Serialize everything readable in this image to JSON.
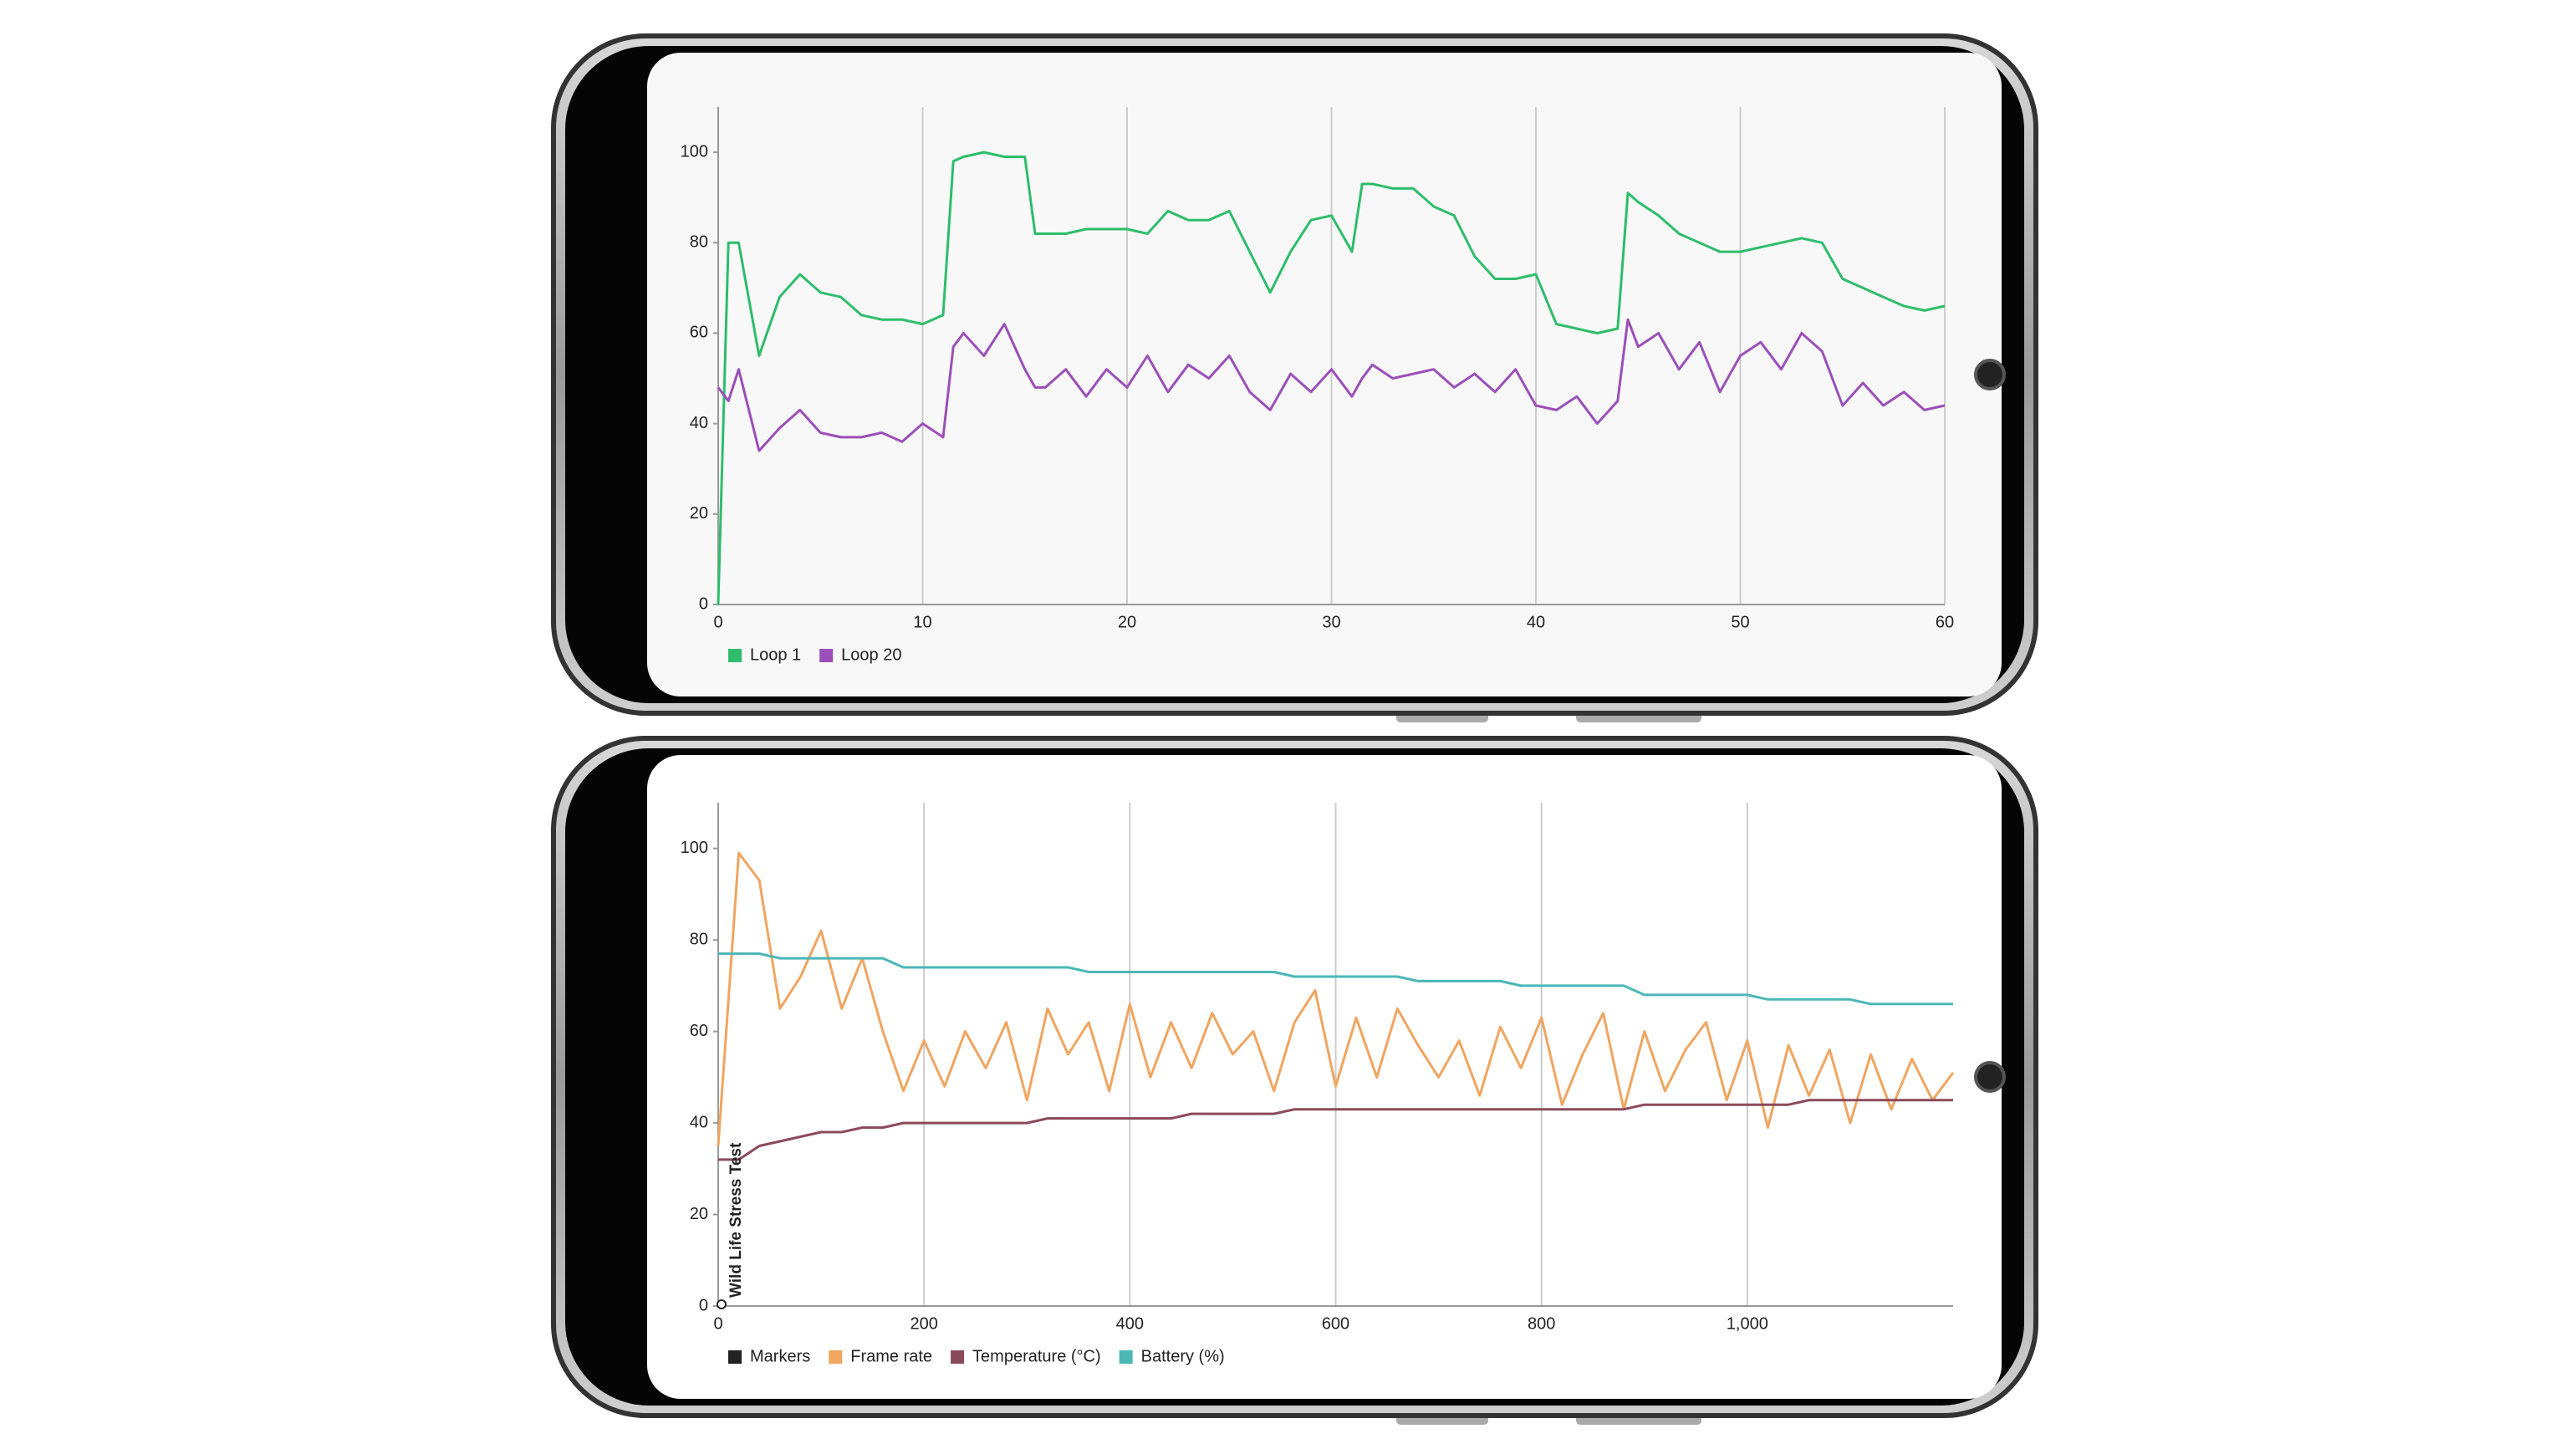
{
  "chart_data": [
    {
      "type": "line",
      "x": [
        0,
        0.5,
        1,
        2,
        3,
        4,
        5,
        6,
        7,
        8,
        9,
        10,
        11,
        11.5,
        12,
        13,
        14,
        15,
        15.5,
        16,
        17,
        18,
        19,
        20,
        21,
        22,
        23,
        24,
        25,
        26,
        27,
        28,
        29,
        30,
        31,
        31.5,
        32,
        33,
        34,
        35,
        36,
        37,
        38,
        39,
        40,
        41,
        42,
        43,
        44,
        44.5,
        45,
        46,
        47,
        48,
        49,
        50,
        51,
        52,
        53,
        54,
        55,
        56,
        57,
        58,
        59,
        60
      ],
      "series": [
        {
          "name": "Loop 1",
          "color": "#2ebd6b",
          "values": [
            0,
            80,
            80,
            55,
            68,
            73,
            69,
            68,
            64,
            63,
            63,
            62,
            64,
            98,
            99,
            100,
            99,
            99,
            82,
            82,
            82,
            83,
            83,
            83,
            82,
            87,
            85,
            85,
            87,
            78,
            69,
            78,
            85,
            86,
            78,
            93,
            93,
            92,
            92,
            88,
            86,
            77,
            72,
            72,
            73,
            62,
            61,
            60,
            61,
            91,
            89,
            86,
            82,
            80,
            78,
            78,
            79,
            80,
            81,
            80,
            72,
            70,
            68,
            66,
            65,
            66
          ]
        },
        {
          "name": "Loop 20",
          "color": "#9b4fb8",
          "values": [
            48,
            45,
            52,
            34,
            39,
            43,
            38,
            37,
            37,
            38,
            36,
            40,
            37,
            57,
            60,
            55,
            62,
            52,
            48,
            48,
            52,
            46,
            52,
            48,
            55,
            47,
            53,
            50,
            55,
            47,
            43,
            51,
            47,
            52,
            46,
            50,
            53,
            50,
            51,
            52,
            48,
            51,
            47,
            52,
            44,
            43,
            46,
            40,
            45,
            63,
            57,
            60,
            52,
            58,
            47,
            55,
            58,
            52,
            60,
            56,
            44,
            49,
            44,
            47,
            43,
            44
          ]
        }
      ],
      "xlim": [
        0,
        60
      ],
      "xticks": [
        0,
        10,
        20,
        30,
        40,
        50,
        60
      ],
      "ylim": [
        0,
        110
      ],
      "yticks": [
        0,
        20,
        40,
        60,
        80,
        100
      ],
      "grid": true,
      "legend": "bottom"
    },
    {
      "type": "line",
      "x": [
        0,
        20,
        40,
        60,
        80,
        100,
        120,
        140,
        160,
        180,
        200,
        220,
        240,
        260,
        280,
        300,
        320,
        340,
        360,
        380,
        400,
        420,
        440,
        460,
        480,
        500,
        520,
        540,
        560,
        580,
        600,
        620,
        640,
        660,
        680,
        700,
        720,
        740,
        760,
        780,
        800,
        820,
        840,
        860,
        880,
        900,
        920,
        940,
        960,
        980,
        1000,
        1020,
        1040,
        1060,
        1080,
        1100,
        1120,
        1140,
        1160,
        1180,
        1200
      ],
      "series": [
        {
          "name": "Markers",
          "color": "#222222"
        },
        {
          "name": "Frame rate",
          "color": "#f0a560",
          "values": [
            35,
            99,
            93,
            65,
            72,
            82,
            65,
            76,
            60,
            47,
            58,
            48,
            60,
            52,
            62,
            45,
            65,
            55,
            62,
            47,
            66,
            50,
            62,
            52,
            64,
            55,
            60,
            47,
            62,
            69,
            48,
            63,
            50,
            65,
            57,
            50,
            58,
            46,
            61,
            52,
            63,
            44,
            55,
            64,
            43,
            60,
            47,
            56,
            62,
            45,
            58,
            39,
            57,
            46,
            56,
            40,
            55,
            43,
            54,
            45,
            51
          ]
        },
        {
          "name": "Temperature (°C)",
          "color": "#8b4a5a",
          "values": [
            32,
            32,
            35,
            36,
            37,
            38,
            38,
            39,
            39,
            40,
            40,
            40,
            40,
            40,
            40,
            40,
            41,
            41,
            41,
            41,
            41,
            41,
            41,
            42,
            42,
            42,
            42,
            42,
            43,
            43,
            43,
            43,
            43,
            43,
            43,
            43,
            43,
            43,
            43,
            43,
            43,
            43,
            43,
            43,
            43,
            44,
            44,
            44,
            44,
            44,
            44,
            44,
            44,
            45,
            45,
            45,
            45,
            45,
            45,
            45,
            45
          ]
        },
        {
          "name": "Battery (%)",
          "color": "#4bb8b5",
          "values": [
            77,
            77,
            77,
            76,
            76,
            76,
            76,
            76,
            76,
            74,
            74,
            74,
            74,
            74,
            74,
            74,
            74,
            74,
            73,
            73,
            73,
            73,
            73,
            73,
            73,
            73,
            73,
            73,
            72,
            72,
            72,
            72,
            72,
            72,
            71,
            71,
            71,
            71,
            71,
            70,
            70,
            70,
            70,
            70,
            70,
            68,
            68,
            68,
            68,
            68,
            68,
            67,
            67,
            67,
            67,
            67,
            66,
            66,
            66,
            66,
            66
          ]
        }
      ],
      "markers": [
        {
          "x": 0,
          "label": "Wild Life Stress Test"
        }
      ],
      "xlim": [
        0,
        1200
      ],
      "xticks": [
        0,
        200,
        400,
        600,
        800,
        {
          "value": 1000,
          "label": "1,000"
        }
      ],
      "ylim": [
        0,
        110
      ],
      "yticks": [
        0,
        20,
        40,
        60,
        80,
        100
      ],
      "grid": true,
      "legend": "bottom"
    }
  ]
}
